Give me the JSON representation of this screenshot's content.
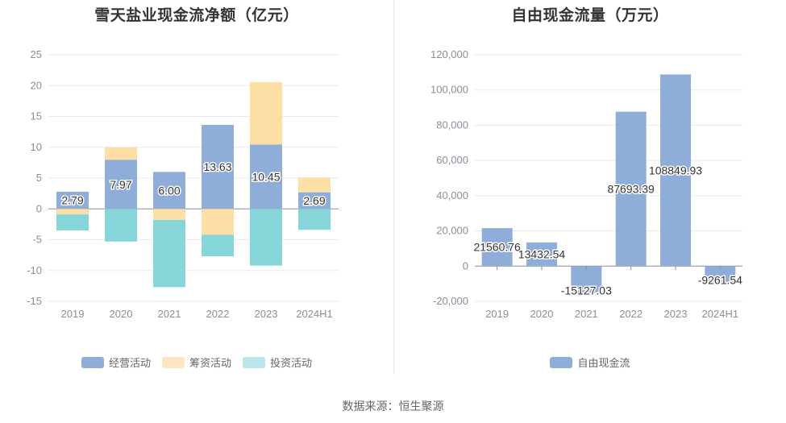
{
  "source_text": "数据来源：恒生聚源",
  "chart_data": [
    {
      "type": "bar",
      "stacked": true,
      "title": "雪天盐业现金流净额（亿元）",
      "categories": [
        "2019",
        "2020",
        "2021",
        "2022",
        "2023",
        "2024H1"
      ],
      "ylim": [
        -15,
        25
      ],
      "yticks": [
        25,
        20,
        15,
        10,
        5,
        0,
        -5,
        -10,
        -15
      ],
      "series": [
        {
          "name": "经营活动",
          "color": "#8fadd9",
          "values": [
            2.79,
            7.97,
            6.0,
            13.63,
            10.45,
            2.69
          ],
          "labels": [
            "2.79",
            "7.97",
            "6.00",
            "13.63",
            "10.45",
            "2.69"
          ]
        },
        {
          "name": "筹资活动",
          "color": "#fddea5",
          "values": [
            -0.9,
            2.0,
            -1.8,
            -4.2,
            10.1,
            2.4
          ]
        },
        {
          "name": "投资活动",
          "color": "#86d6d9",
          "values": [
            -2.6,
            -5.3,
            -10.9,
            -3.5,
            -9.2,
            -3.4
          ]
        }
      ],
      "legend_colors": [
        "#8fadd9",
        "#fde6c0",
        "#b9e6e8"
      ],
      "grid": true,
      "legend_position": "bottom"
    },
    {
      "type": "bar",
      "title": "自由现金流量（万元）",
      "categories": [
        "2019",
        "2020",
        "2021",
        "2022",
        "2023",
        "2024H1"
      ],
      "ylim": [
        -20000,
        120000
      ],
      "yticks": [
        "120,000",
        "100,000",
        "80,000",
        "60,000",
        "40,000",
        "20,000",
        "0",
        "-20,000"
      ],
      "series": [
        {
          "name": "自由现金流",
          "color": "#8fadd9",
          "values": [
            21560.76,
            13432.54,
            -15127.03,
            87693.39,
            108849.93,
            -9261.54
          ],
          "labels": [
            "21560.76",
            "13432.54",
            "-15127.03",
            "87693.39",
            "108849.93",
            "-9261.54"
          ]
        }
      ],
      "grid": true,
      "legend_position": "bottom"
    }
  ]
}
